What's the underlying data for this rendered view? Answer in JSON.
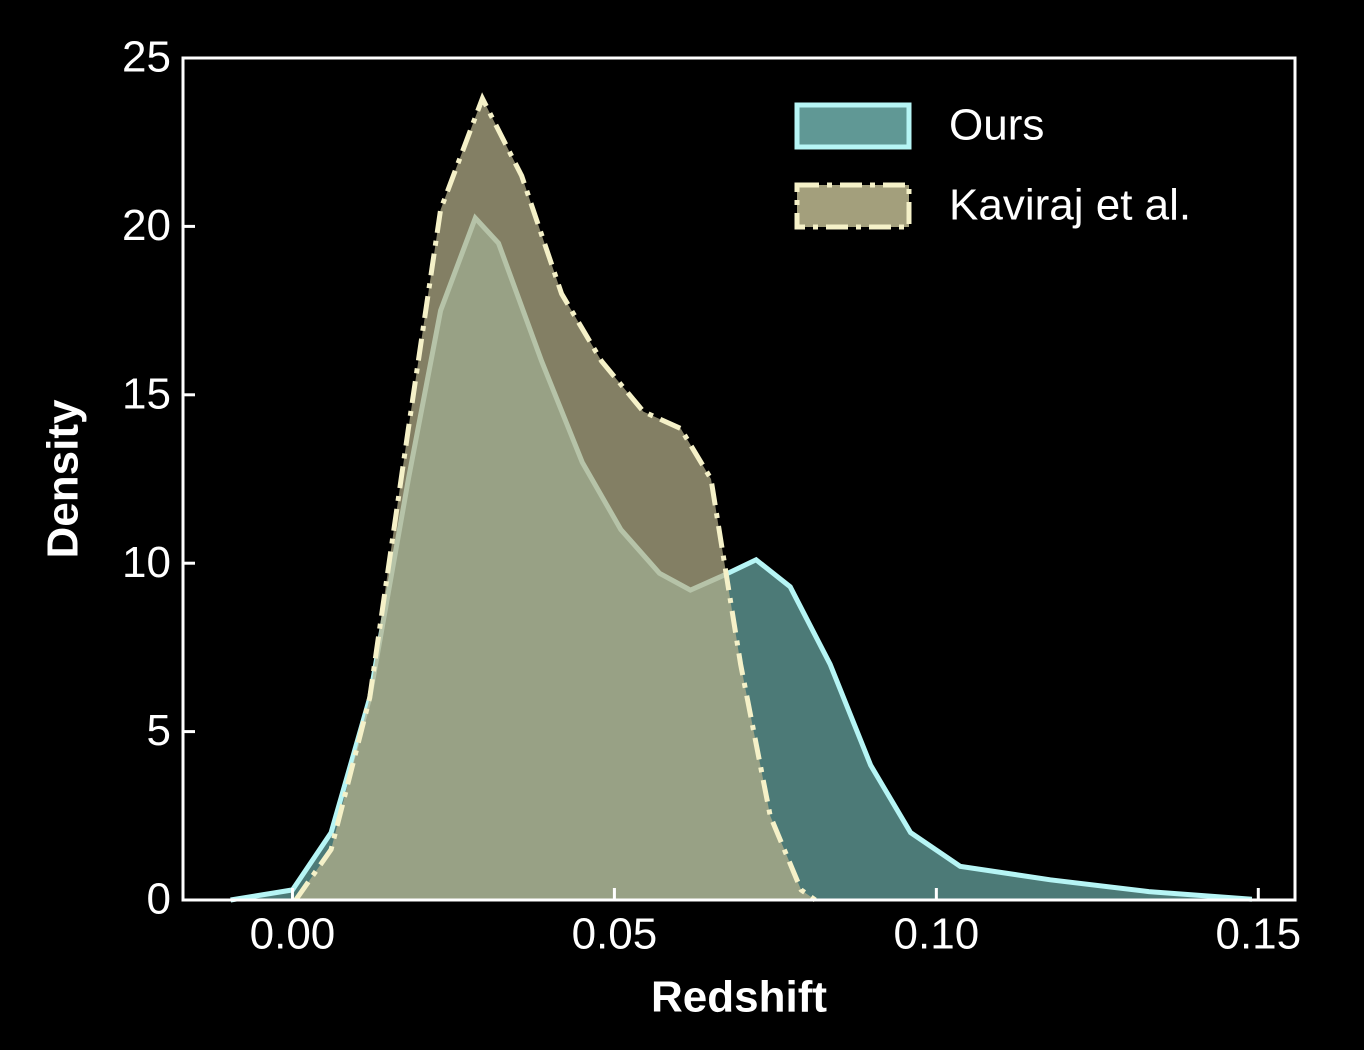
{
  "chart_data": {
    "type": "area",
    "x_label": "Redshift",
    "y_label": "Density",
    "xlim": [
      -0.017,
      0.1557
    ],
    "ylim": [
      0,
      25
    ],
    "xticks": [
      {
        "value": 0,
        "label": "0.00"
      },
      0.05,
      {
        "value": 0.1,
        "label": "0.10"
      },
      0.15
    ],
    "yticks": [
      0,
      5,
      10,
      15,
      20,
      25
    ],
    "legend": "upper right",
    "series": [
      {
        "name": "Ours",
        "color": "#6aa9a5",
        "edge_color": "#b6f5f5",
        "linestyle": "solid",
        "x": [
          -0.0096,
          0.0,
          0.006,
          0.012,
          0.018,
          0.023,
          0.0284,
          0.032,
          0.0387,
          0.045,
          0.051,
          0.057,
          0.0618,
          0.0665,
          0.072,
          0.0773,
          0.0835,
          0.0898,
          0.096,
          0.1037,
          0.1177,
          0.133,
          0.149
        ],
        "values": [
          0,
          0.3,
          2,
          6,
          12.5,
          17.5,
          20.25,
          19.5,
          16,
          13,
          11,
          9.7,
          9.2,
          9.6,
          10.1,
          9.3,
          7,
          4,
          2,
          1,
          0.6,
          0.25,
          0.02
        ]
      },
      {
        "name": "Kaviraj et al.",
        "color": "#b5b08a",
        "edge_color": "#f5f1c8",
        "linestyle": "dashdot",
        "x": [
          0.0005,
          0.006,
          0.012,
          0.018,
          0.023,
          0.0295,
          0.0356,
          0.0418,
          0.048,
          0.0545,
          0.0603,
          0.065,
          0.0696,
          0.0742,
          0.079,
          0.0812
        ],
        "values": [
          0,
          1.5,
          6,
          14,
          20.5,
          23.8,
          21.5,
          18,
          16,
          14.5,
          14,
          12.5,
          7,
          2.5,
          0.3,
          0
        ]
      }
    ]
  }
}
